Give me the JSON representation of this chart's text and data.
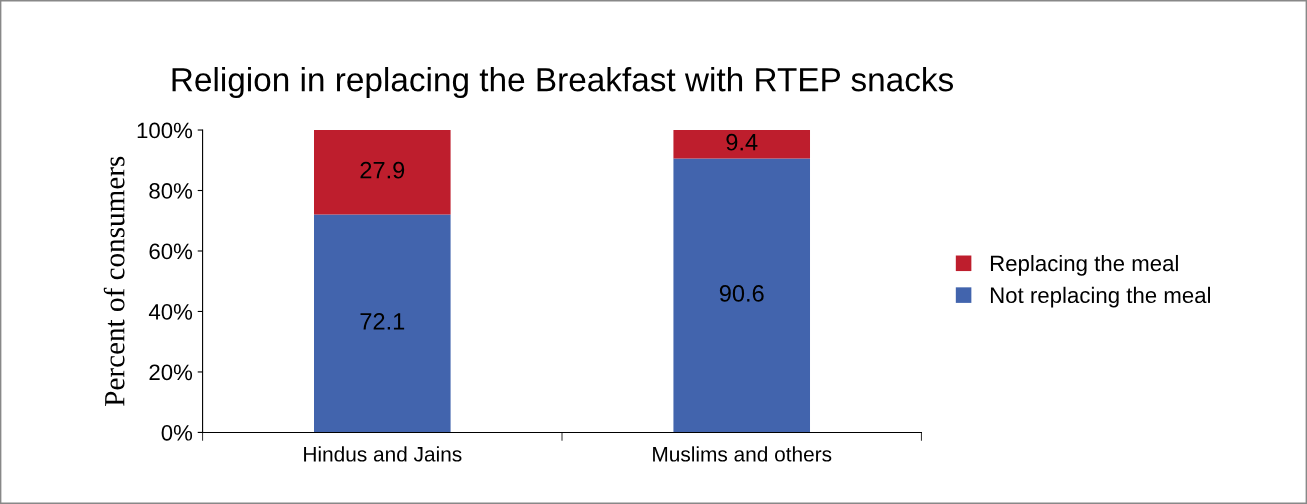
{
  "chart_data": {
    "type": "bar",
    "title": "Religion in replacing the Breakfast with RTEP snacks",
    "ylabel": "Percent of consumers",
    "categories": [
      "Hindus and Jains",
      "Muslims and others"
    ],
    "stacked": true,
    "series": [
      {
        "name": "Not replacing the meal",
        "color": "#4264ad",
        "values": [
          72.1,
          90.6
        ]
      },
      {
        "name": "Replacing the meal",
        "color": "#be1e2d",
        "values": [
          27.9,
          9.4
        ]
      }
    ],
    "ylim": [
      0,
      100
    ],
    "yticks": [
      {
        "value": 0,
        "label": "0%"
      },
      {
        "value": 20,
        "label": "20%"
      },
      {
        "value": 40,
        "label": "40%"
      },
      {
        "value": 60,
        "label": "60%"
      },
      {
        "value": 80,
        "label": "80%"
      },
      {
        "value": 100,
        "label": "100%"
      }
    ],
    "data_labels": true,
    "grid": false,
    "legend": "right"
  }
}
